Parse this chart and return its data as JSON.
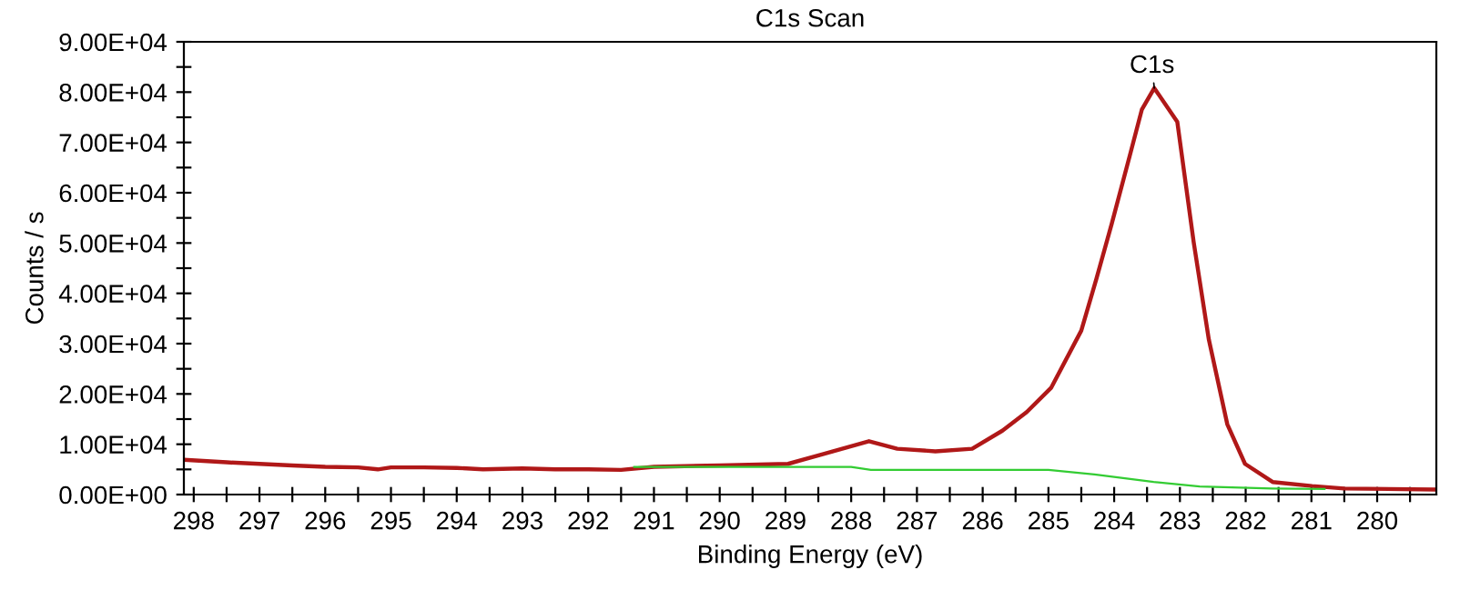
{
  "chart_data": {
    "type": "line",
    "title": "C1s Scan",
    "xlabel": "Binding Energy (eV)",
    "ylabel": "Counts / s",
    "xlim": [
      298.15,
      279.1
    ],
    "xticks": [
      298,
      {
        "value": 297.5,
        "label": null
      },
      297,
      {
        "value": 296.5,
        "label": null
      },
      296,
      {
        "value": 295.5,
        "label": null
      },
      295,
      {
        "value": 294.5,
        "label": null
      },
      294,
      {
        "value": 293.5,
        "label": null
      },
      293,
      {
        "value": 292.5,
        "label": null
      },
      292,
      {
        "value": 291.5,
        "label": null
      },
      291,
      {
        "value": 290.5,
        "label": null
      },
      290,
      {
        "value": 289.5,
        "label": null
      },
      289,
      {
        "value": 288.5,
        "label": null
      },
      288,
      {
        "value": 287.5,
        "label": null
      },
      287,
      {
        "value": 286.5,
        "label": null
      },
      286,
      {
        "value": 285.5,
        "label": null
      },
      285,
      {
        "value": 284.5,
        "label": null
      },
      284,
      {
        "value": 283.5,
        "label": null
      },
      283,
      {
        "value": 282.5,
        "label": null
      },
      282,
      {
        "value": 281.5,
        "label": null
      },
      281,
      {
        "value": 280.5,
        "label": null
      },
      280,
      {
        "value": 279.5,
        "label": null
      }
    ],
    "ylim": [
      0,
      90000
    ],
    "yticks": [
      {
        "value": 0,
        "label": "0.00E+00"
      },
      {
        "value": 5000,
        "label": null
      },
      {
        "value": 10000,
        "label": "1.00E+04"
      },
      {
        "value": 15000,
        "label": null
      },
      {
        "value": 20000,
        "label": "2.00E+04"
      },
      {
        "value": 25000,
        "label": null
      },
      {
        "value": 30000,
        "label": "3.00E+04"
      },
      {
        "value": 35000,
        "label": null
      },
      {
        "value": 40000,
        "label": "4.00E+04"
      },
      {
        "value": 45000,
        "label": null
      },
      {
        "value": 50000,
        "label": "5.00E+04"
      },
      {
        "value": 55000,
        "label": null
      },
      {
        "value": 60000,
        "label": "6.00E+04"
      },
      {
        "value": 65000,
        "label": null
      },
      {
        "value": 70000,
        "label": "7.00E+04"
      },
      {
        "value": 75000,
        "label": null
      },
      {
        "value": 80000,
        "label": "8.00E+04"
      },
      {
        "value": 85000,
        "label": null
      },
      {
        "value": 90000,
        "label": "9.00E+04"
      }
    ],
    "grid": false,
    "legend": false,
    "marker": "none",
    "line_style": "solid",
    "series": [
      {
        "color": "#b01818",
        "x": [
          298.15,
          297.5,
          297,
          296.5,
          296,
          295.5,
          295.2,
          295,
          294.5,
          294,
          293.6,
          293,
          292.5,
          292,
          291.5,
          291,
          290,
          288.96,
          288.47,
          287.73,
          287.3,
          286.72,
          286.16,
          285.7,
          285.33,
          284.96,
          284.5,
          284.27,
          284.04,
          283.76,
          283.58,
          283.39,
          283.04,
          282.79,
          282.56,
          282.28,
          282.01,
          281.59,
          280.99,
          280.5,
          279.1
        ],
        "values": [
          6900,
          6400,
          6100,
          5800,
          5500,
          5400,
          5000,
          5400,
          5400,
          5300,
          5000,
          5200,
          5000,
          5000,
          4900,
          5500,
          5800,
          6100,
          7900,
          10600,
          9100,
          8600,
          9100,
          12700,
          16400,
          21200,
          32600,
          42900,
          53700,
          67500,
          76500,
          80800,
          74100,
          50100,
          30800,
          14000,
          6100,
          2500,
          1700,
          1200,
          1000
        ]
      },
      {
        "color": "#33cc33",
        "x": [
          291.3,
          290,
          289,
          288,
          287.7,
          286,
          285,
          284.3,
          283.4,
          282.7,
          281.6,
          280.8
        ],
        "values": [
          5500,
          5500,
          5500,
          5500,
          4900,
          4900,
          4900,
          4000,
          2500,
          1600,
          1200,
          1100
        ]
      }
    ],
    "annotations": [
      {
        "text": "C1s",
        "x": 283.39,
        "y": 80800
      }
    ]
  }
}
